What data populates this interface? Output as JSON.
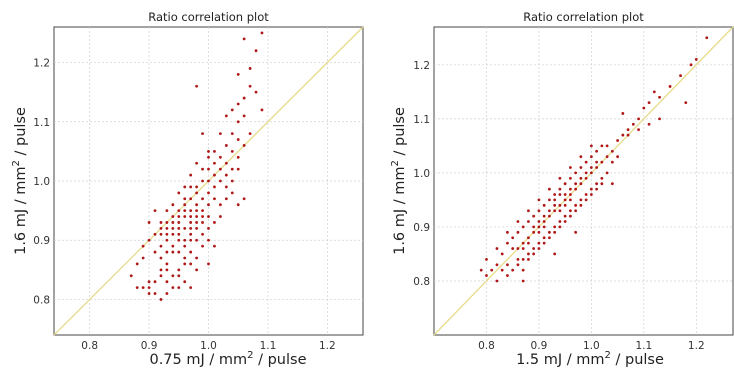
{
  "chart_data": [
    {
      "type": "scatter",
      "title": "Ratio correlation plot",
      "xlabel_prefix": "0.75 mJ / mm",
      "xlabel_sup": "2",
      "xlabel_suffix": " / pulse",
      "ylabel_prefix": "1.6 mJ / mm",
      "ylabel_sup": "2",
      "ylabel_suffix": " / pulse",
      "xlim": [
        0.74,
        1.26
      ],
      "ylim": [
        0.74,
        1.26
      ],
      "xticks": [
        "0.8",
        "0.9",
        "1.0",
        "1.1",
        "1.2"
      ],
      "yticks": [
        "0.8",
        "0.9",
        "1.0",
        "1.1",
        "1.2"
      ],
      "grid": true,
      "reference_line": "y = x",
      "point_color": "#b01818",
      "line_color": "#e6dc8a",
      "points": [
        [
          0.87,
          0.84
        ],
        [
          0.88,
          0.82
        ],
        [
          0.89,
          0.82
        ],
        [
          0.9,
          0.82
        ],
        [
          0.9,
          0.81
        ],
        [
          0.91,
          0.81
        ],
        [
          0.9,
          0.83
        ],
        [
          0.91,
          0.83
        ],
        [
          0.92,
          0.8
        ],
        [
          0.93,
          0.81
        ],
        [
          0.92,
          0.84
        ],
        [
          0.93,
          0.85
        ],
        [
          0.92,
          0.87
        ],
        [
          0.93,
          0.86
        ],
        [
          0.94,
          0.84
        ],
        [
          0.95,
          0.82
        ],
        [
          0.95,
          0.85
        ],
        [
          0.96,
          0.83
        ],
        [
          0.96,
          0.86
        ],
        [
          0.97,
          0.82
        ],
        [
          0.94,
          0.88
        ],
        [
          0.95,
          0.88
        ],
        [
          0.92,
          0.89
        ],
        [
          0.93,
          0.9
        ],
        [
          0.94,
          0.91
        ],
        [
          0.95,
          0.9
        ],
        [
          0.96,
          0.89
        ],
        [
          0.97,
          0.88
        ],
        [
          0.98,
          0.87
        ],
        [
          0.97,
          0.9
        ],
        [
          0.96,
          0.92
        ],
        [
          0.95,
          0.93
        ],
        [
          0.94,
          0.93
        ],
        [
          0.93,
          0.92
        ],
        [
          0.92,
          0.91
        ],
        [
          0.91,
          0.88
        ],
        [
          0.9,
          0.9
        ],
        [
          0.91,
          0.91
        ],
        [
          0.96,
          0.94
        ],
        [
          0.97,
          0.93
        ],
        [
          0.98,
          0.92
        ],
        [
          0.98,
          0.94
        ],
        [
          0.99,
          0.93
        ],
        [
          0.97,
          0.95
        ],
        [
          0.96,
          0.96
        ],
        [
          0.95,
          0.95
        ],
        [
          0.98,
          0.96
        ],
        [
          0.99,
          0.95
        ],
        [
          1.0,
          0.94
        ],
        [
          1.0,
          0.92
        ],
        [
          0.99,
          0.97
        ],
        [
          0.98,
          0.98
        ],
        [
          0.97,
          0.97
        ],
        [
          1.0,
          0.98
        ],
        [
          1.01,
          0.97
        ],
        [
          1.02,
          0.96
        ],
        [
          1.01,
          0.99
        ],
        [
          1.0,
          1.0
        ],
        [
          0.99,
          1.0
        ],
        [
          1.02,
          1.0
        ],
        [
          1.03,
          0.99
        ],
        [
          1.01,
          1.01
        ],
        [
          1.02,
          1.02
        ],
        [
          1.0,
          1.02
        ],
        [
          1.03,
          1.03
        ],
        [
          1.04,
          1.02
        ],
        [
          1.02,
          1.04
        ],
        [
          1.01,
          1.05
        ],
        [
          1.03,
          1.06
        ],
        [
          1.04,
          1.05
        ],
        [
          1.05,
          1.04
        ],
        [
          1.04,
          1.08
        ],
        [
          1.05,
          1.07
        ],
        [
          1.06,
          1.06
        ],
        [
          1.05,
          1.1
        ],
        [
          1.06,
          1.11
        ],
        [
          1.07,
          1.08
        ],
        [
          1.04,
          1.12
        ],
        [
          1.05,
          1.13
        ],
        [
          1.06,
          1.14
        ],
        [
          1.07,
          1.16
        ],
        [
          1.08,
          1.15
        ],
        [
          1.09,
          1.12
        ],
        [
          1.07,
          1.19
        ],
        [
          1.05,
          1.18
        ],
        [
          1.06,
          1.24
        ],
        [
          1.09,
          1.25
        ],
        [
          1.08,
          1.22
        ],
        [
          1.03,
          1.11
        ],
        [
          1.02,
          1.08
        ],
        [
          0.98,
          1.16
        ],
        [
          0.99,
          1.08
        ],
        [
          1.0,
          1.05
        ],
        [
          0.98,
          1.03
        ],
        [
          0.97,
          1.01
        ],
        [
          0.96,
          0.99
        ],
        [
          0.95,
          0.98
        ],
        [
          0.94,
          0.96
        ],
        [
          0.93,
          0.95
        ],
        [
          0.92,
          0.93
        ],
        [
          0.91,
          0.95
        ],
        [
          0.9,
          0.93
        ],
        [
          0.89,
          0.89
        ],
        [
          0.88,
          0.86
        ],
        [
          0.89,
          0.87
        ],
        [
          0.93,
          0.88
        ],
        [
          0.94,
          0.89
        ],
        [
          0.95,
          0.91
        ],
        [
          0.96,
          0.9
        ],
        [
          0.97,
          0.91
        ],
        [
          0.98,
          0.9
        ],
        [
          0.99,
          0.91
        ],
        [
          1.0,
          0.9
        ],
        [
          1.01,
          0.93
        ],
        [
          1.02,
          0.94
        ],
        [
          1.03,
          0.97
        ],
        [
          1.04,
          0.98
        ],
        [
          1.05,
          0.96
        ],
        [
          1.06,
          0.97
        ],
        [
          1.0,
          0.96
        ],
        [
          0.98,
          0.99
        ],
        [
          0.97,
          0.99
        ],
        [
          0.96,
          0.97
        ],
        [
          0.95,
          0.94
        ],
        [
          0.94,
          0.94
        ],
        [
          0.93,
          0.93
        ],
        [
          0.92,
          0.92
        ],
        [
          0.92,
          0.85
        ],
        [
          0.93,
          0.83
        ],
        [
          0.94,
          0.82
        ],
        [
          0.95,
          0.84
        ],
        [
          0.96,
          0.87
        ],
        [
          0.97,
          0.86
        ],
        [
          0.98,
          0.85
        ],
        [
          1.0,
          0.86
        ],
        [
          1.01,
          0.89
        ],
        [
          0.99,
          0.89
        ],
        [
          1.03,
          1.01
        ],
        [
          1.04,
          1.0
        ],
        [
          1.05,
          1.02
        ],
        [
          1.01,
          1.03
        ],
        [
          1.0,
          1.04
        ],
        [
          0.99,
          1.02
        ],
        [
          0.96,
          0.95
        ],
        [
          0.97,
          0.94
        ],
        [
          0.98,
          0.95
        ],
        [
          0.99,
          0.94
        ],
        [
          0.95,
          0.92
        ],
        [
          0.94,
          0.92
        ],
        [
          0.93,
          0.91
        ],
        [
          0.97,
          0.92
        ],
        [
          0.98,
          0.93
        ]
      ]
    },
    {
      "type": "scatter",
      "title": "Ratio correlation plot",
      "xlabel_prefix": "1.5 mJ / mm",
      "xlabel_sup": "2",
      "xlabel_suffix": " / pulse",
      "ylabel_prefix": "1.6 mJ / mm",
      "ylabel_sup": "2",
      "ylabel_suffix": " / pulse",
      "xlim": [
        0.7,
        1.27
      ],
      "ylim": [
        0.7,
        1.27
      ],
      "xticks": [
        "0.8",
        "0.9",
        "1.0",
        "1.1",
        "1.2"
      ],
      "yticks": [
        "0.8",
        "0.9",
        "1.0",
        "1.1",
        "1.2"
      ],
      "grid": true,
      "reference_line": "y = x",
      "point_color": "#b01818",
      "line_color": "#e6dc8a",
      "points": [
        [
          0.79,
          0.82
        ],
        [
          0.8,
          0.81
        ],
        [
          0.81,
          0.82
        ],
        [
          0.8,
          0.84
        ],
        [
          0.82,
          0.8
        ],
        [
          0.83,
          0.82
        ],
        [
          0.82,
          0.83
        ],
        [
          0.84,
          0.83
        ],
        [
          0.83,
          0.85
        ],
        [
          0.84,
          0.87
        ],
        [
          0.85,
          0.86
        ],
        [
          0.86,
          0.84
        ],
        [
          0.85,
          0.88
        ],
        [
          0.86,
          0.89
        ],
        [
          0.87,
          0.87
        ],
        [
          0.88,
          0.88
        ],
        [
          0.87,
          0.9
        ],
        [
          0.88,
          0.91
        ],
        [
          0.89,
          0.89
        ],
        [
          0.9,
          0.9
        ],
        [
          0.89,
          0.92
        ],
        [
          0.9,
          0.93
        ],
        [
          0.91,
          0.91
        ],
        [
          0.92,
          0.92
        ],
        [
          0.91,
          0.94
        ],
        [
          0.92,
          0.95
        ],
        [
          0.93,
          0.93
        ],
        [
          0.94,
          0.94
        ],
        [
          0.93,
          0.96
        ],
        [
          0.94,
          0.97
        ],
        [
          0.95,
          0.95
        ],
        [
          0.96,
          0.96
        ],
        [
          0.95,
          0.98
        ],
        [
          0.96,
          0.99
        ],
        [
          0.97,
          0.97
        ],
        [
          0.98,
          0.98
        ],
        [
          0.97,
          1.0
        ],
        [
          0.98,
          1.01
        ],
        [
          0.99,
          0.99
        ],
        [
          1.0,
          1.0
        ],
        [
          0.99,
          1.02
        ],
        [
          1.0,
          1.03
        ],
        [
          1.01,
          1.01
        ],
        [
          1.02,
          1.02
        ],
        [
          1.01,
          1.04
        ],
        [
          1.03,
          1.03
        ],
        [
          1.02,
          1.05
        ],
        [
          1.03,
          1.05
        ],
        [
          1.04,
          1.04
        ],
        [
          1.05,
          1.06
        ],
        [
          1.06,
          1.07
        ],
        [
          1.07,
          1.08
        ],
        [
          1.08,
          1.09
        ],
        [
          1.09,
          1.1
        ],
        [
          1.1,
          1.12
        ],
        [
          1.11,
          1.13
        ],
        [
          1.12,
          1.15
        ],
        [
          1.13,
          1.14
        ],
        [
          1.15,
          1.16
        ],
        [
          1.17,
          1.18
        ],
        [
          1.19,
          1.2
        ],
        [
          1.2,
          1.21
        ],
        [
          1.22,
          1.25
        ],
        [
          1.18,
          1.13
        ],
        [
          1.13,
          1.1
        ],
        [
          1.09,
          1.08
        ],
        [
          1.07,
          1.07
        ],
        [
          1.11,
          1.09
        ],
        [
          1.06,
          1.11
        ],
        [
          1.05,
          1.03
        ],
        [
          1.04,
          1.02
        ],
        [
          1.03,
          1.0
        ],
        [
          1.02,
          0.99
        ],
        [
          1.01,
          0.98
        ],
        [
          1.0,
          0.97
        ],
        [
          0.99,
          0.96
        ],
        [
          0.98,
          0.95
        ],
        [
          0.97,
          0.94
        ],
        [
          0.96,
          0.93
        ],
        [
          0.95,
          0.92
        ],
        [
          0.94,
          0.91
        ],
        [
          0.93,
          0.9
        ],
        [
          0.92,
          0.89
        ],
        [
          0.91,
          0.88
        ],
        [
          0.9,
          0.87
        ],
        [
          0.89,
          0.86
        ],
        [
          0.88,
          0.85
        ],
        [
          0.87,
          0.84
        ],
        [
          0.86,
          0.83
        ],
        [
          0.85,
          0.82
        ],
        [
          0.84,
          0.81
        ],
        [
          0.87,
          0.82
        ],
        [
          0.88,
          0.84
        ],
        [
          0.89,
          0.85
        ],
        [
          0.9,
          0.86
        ],
        [
          0.91,
          0.87
        ],
        [
          0.92,
          0.88
        ],
        [
          0.93,
          0.89
        ],
        [
          0.94,
          0.9
        ],
        [
          0.95,
          0.91
        ],
        [
          0.96,
          0.92
        ],
        [
          0.97,
          0.93
        ],
        [
          0.98,
          0.94
        ],
        [
          0.99,
          0.95
        ],
        [
          1.0,
          0.96
        ],
        [
          1.01,
          0.97
        ],
        [
          1.02,
          0.98
        ],
        [
          0.84,
          0.89
        ],
        [
          0.86,
          0.91
        ],
        [
          0.88,
          0.93
        ],
        [
          0.9,
          0.95
        ],
        [
          0.92,
          0.97
        ],
        [
          0.94,
          0.99
        ],
        [
          0.96,
          1.01
        ],
        [
          0.98,
          1.03
        ],
        [
          1.0,
          1.05
        ],
        [
          0.87,
          0.8
        ],
        [
          0.93,
          0.85
        ],
        [
          0.97,
          0.89
        ],
        [
          1.04,
          0.98
        ],
        [
          0.82,
          0.86
        ],
        [
          0.95,
          0.94
        ],
        [
          0.96,
          0.95
        ],
        [
          0.94,
          0.93
        ],
        [
          0.93,
          0.94
        ],
        [
          0.92,
          0.93
        ],
        [
          0.91,
          0.92
        ],
        [
          0.9,
          0.91
        ],
        [
          0.89,
          0.9
        ],
        [
          0.95,
          0.96
        ],
        [
          0.96,
          0.97
        ],
        [
          0.97,
          0.98
        ],
        [
          0.98,
          0.99
        ],
        [
          0.99,
          1.0
        ],
        [
          1.0,
          1.01
        ],
        [
          1.01,
          1.02
        ],
        [
          0.94,
          0.96
        ],
        [
          0.93,
          0.95
        ],
        [
          0.91,
          0.9
        ],
        [
          0.9,
          0.89
        ],
        [
          0.88,
          0.87
        ],
        [
          0.87,
          0.86
        ],
        [
          0.86,
          0.86
        ]
      ]
    }
  ]
}
